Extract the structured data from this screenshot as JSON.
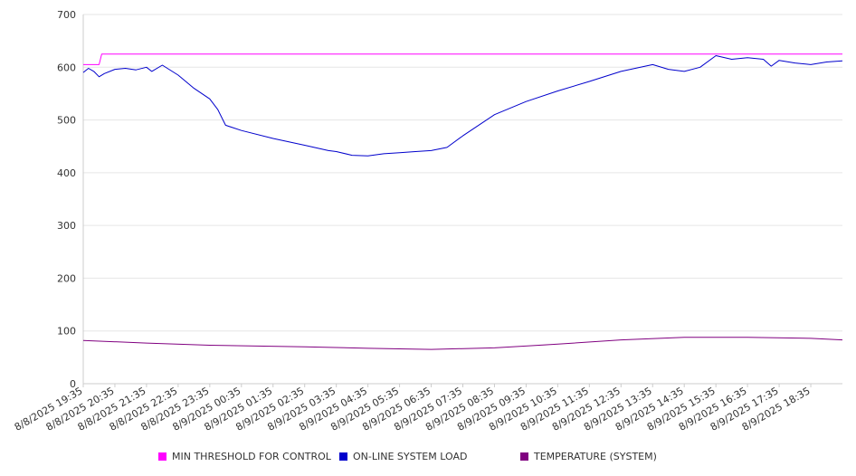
{
  "chart_data": {
    "type": "line",
    "ylim": [
      0,
      700
    ],
    "yticks": [
      0,
      100,
      200,
      300,
      400,
      500,
      600,
      700
    ],
    "xlim": [
      "2025-08-08T19:35",
      "2025-08-09T19:35"
    ],
    "x_tick_labels": [
      "8/8/2025 19:35",
      "8/8/2025 20:35",
      "8/8/2025 21:35",
      "8/8/2025 22:35",
      "8/8/2025 23:35",
      "8/9/2025 00:35",
      "8/9/2025 01:35",
      "8/9/2025 02:35",
      "8/9/2025 03:35",
      "8/9/2025 04:35",
      "8/9/2025 05:35",
      "8/9/2025 06:35",
      "8/9/2025 07:35",
      "8/9/2025 08:35",
      "8/9/2025 09:35",
      "8/9/2025 10:35",
      "8/9/2025 11:35",
      "8/9/2025 12:35",
      "8/9/2025 13:35",
      "8/9/2025 14:35",
      "8/9/2025 15:35",
      "8/9/2025 16:35",
      "8/9/2025 17:35",
      "8/9/2025 18:35"
    ],
    "grid": "horizontal",
    "legend_position": "bottom",
    "series": [
      {
        "name": "MIN THRESHOLD FOR CONTROL",
        "color": "#ff00ff",
        "x": [
          "2025-08-08T19:35",
          "2025-08-08T20:05",
          "2025-08-08T20:10",
          "2025-08-09T19:35"
        ],
        "y": [
          605,
          605,
          625,
          625
        ]
      },
      {
        "name": "ON-LINE SYSTEM LOAD",
        "color": "#0000cc",
        "x": [
          "2025-08-08T19:35",
          "2025-08-08T19:45",
          "2025-08-08T19:55",
          "2025-08-08T20:05",
          "2025-08-08T20:15",
          "2025-08-08T20:35",
          "2025-08-08T20:55",
          "2025-08-08T21:15",
          "2025-08-08T21:35",
          "2025-08-08T21:45",
          "2025-08-08T22:05",
          "2025-08-08T22:35",
          "2025-08-08T23:05",
          "2025-08-08T23:35",
          "2025-08-08T23:50",
          "2025-08-09T00:05",
          "2025-08-09T00:35",
          "2025-08-09T01:35",
          "2025-08-09T02:35",
          "2025-08-09T03:20",
          "2025-08-09T03:35",
          "2025-08-09T04:05",
          "2025-08-09T04:35",
          "2025-08-09T05:05",
          "2025-08-09T05:35",
          "2025-08-09T06:05",
          "2025-08-09T06:35",
          "2025-08-09T07:05",
          "2025-08-09T07:35",
          "2025-08-09T08:35",
          "2025-08-09T09:35",
          "2025-08-09T10:35",
          "2025-08-09T11:35",
          "2025-08-09T12:35",
          "2025-08-09T13:35",
          "2025-08-09T14:05",
          "2025-08-09T14:35",
          "2025-08-09T15:05",
          "2025-08-09T15:35",
          "2025-08-09T16:05",
          "2025-08-09T16:35",
          "2025-08-09T17:05",
          "2025-08-09T17:20",
          "2025-08-09T17:35",
          "2025-08-09T18:05",
          "2025-08-09T18:35",
          "2025-08-09T19:05",
          "2025-08-09T19:35"
        ],
        "y": [
          590,
          598,
          592,
          582,
          588,
          596,
          598,
          595,
          600,
          592,
          604,
          585,
          560,
          540,
          520,
          490,
          480,
          465,
          452,
          442,
          440,
          433,
          432,
          436,
          438,
          440,
          442,
          448,
          470,
          510,
          535,
          555,
          573,
          592,
          605,
          596,
          592,
          600,
          622,
          615,
          618,
          615,
          602,
          613,
          608,
          605,
          610,
          612
        ]
      },
      {
        "name": "TEMPERATURE (SYSTEM)",
        "color": "#800080",
        "x": [
          "2025-08-08T19:35",
          "2025-08-08T21:35",
          "2025-08-08T23:35",
          "2025-08-09T02:35",
          "2025-08-09T04:35",
          "2025-08-09T06:35",
          "2025-08-09T08:35",
          "2025-08-09T10:35",
          "2025-08-09T12:35",
          "2025-08-09T14:35",
          "2025-08-09T16:35",
          "2025-08-09T18:35",
          "2025-08-09T19:35"
        ],
        "y": [
          82,
          77,
          73,
          70,
          67,
          65,
          68,
          75,
          83,
          88,
          88,
          86,
          83
        ]
      }
    ]
  }
}
